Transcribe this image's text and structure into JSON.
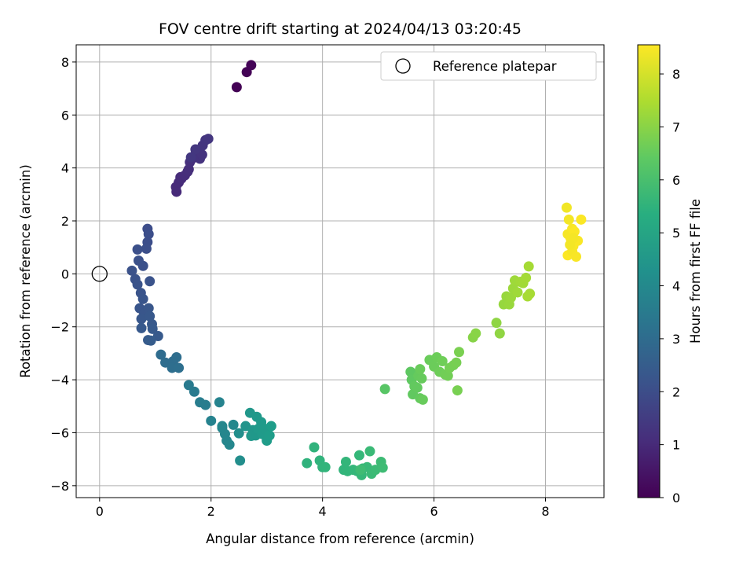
{
  "chart_data": {
    "type": "scatter",
    "title": "FOV centre drift starting at 2024/04/13 03:20:45",
    "xlabel": "Angular distance from reference (arcmin)",
    "ylabel": "Rotation from reference (arcmin)",
    "xlim": [
      -0.42,
      9.05
    ],
    "ylim": [
      -8.45,
      8.65
    ],
    "xticks": [
      "0",
      "2",
      "4",
      "6",
      "8"
    ],
    "yticks": [
      "-8",
      "-6",
      "-4",
      "-2",
      "0",
      "2",
      "4",
      "6",
      "8"
    ],
    "grid": true,
    "legend": {
      "placement": "top-right",
      "entries": [
        "Reference platepar"
      ]
    },
    "reference_point": {
      "x": 0,
      "y": 0
    },
    "colorbar": {
      "label": "Hours from first FF file",
      "min": 0,
      "max": 8.55,
      "ticks": [
        "0",
        "1",
        "2",
        "3",
        "4",
        "5",
        "6",
        "7",
        "8"
      ],
      "colormap": "viridis"
    },
    "points": [
      [
        2.46,
        7.05,
        0.02
      ],
      [
        2.64,
        7.62,
        0.05
      ],
      [
        2.72,
        7.88,
        0.08
      ],
      [
        1.38,
        3.1,
        1.0
      ],
      [
        1.37,
        3.28,
        1.02
      ],
      [
        1.42,
        3.45,
        1.04
      ],
      [
        1.47,
        3.6,
        1.06
      ],
      [
        1.45,
        3.65,
        1.08
      ],
      [
        1.53,
        3.72,
        1.1
      ],
      [
        1.58,
        3.86,
        1.12
      ],
      [
        1.6,
        3.95,
        1.14
      ],
      [
        1.62,
        4.22,
        1.16
      ],
      [
        1.66,
        4.35,
        1.18
      ],
      [
        1.7,
        4.45,
        1.2
      ],
      [
        1.73,
        4.6,
        1.22
      ],
      [
        1.77,
        4.55,
        1.24
      ],
      [
        1.8,
        4.35,
        1.26
      ],
      [
        1.84,
        4.5,
        1.28
      ],
      [
        1.85,
        4.85,
        1.3
      ],
      [
        1.9,
        5.05,
        1.32
      ],
      [
        1.95,
        5.1,
        1.34
      ],
      [
        1.72,
        4.7,
        1.36
      ],
      [
        1.64,
        4.4,
        1.38
      ],
      [
        0.86,
        1.7,
        2.0
      ],
      [
        0.88,
        1.5,
        2.02
      ],
      [
        0.86,
        1.2,
        2.04
      ],
      [
        0.84,
        0.95,
        2.06
      ],
      [
        0.68,
        0.92,
        2.08
      ],
      [
        0.78,
        0.3,
        2.1
      ],
      [
        0.7,
        0.5,
        2.12
      ],
      [
        0.58,
        0.12,
        2.14
      ],
      [
        0.64,
        -0.2,
        2.16
      ],
      [
        0.68,
        -0.4,
        2.18
      ],
      [
        0.9,
        -0.28,
        2.2
      ],
      [
        0.74,
        -0.72,
        2.22
      ],
      [
        0.78,
        -0.95,
        2.24
      ],
      [
        0.72,
        -1.3,
        2.26
      ],
      [
        0.8,
        -1.5,
        2.28
      ],
      [
        0.88,
        -1.3,
        2.3
      ],
      [
        0.75,
        -1.7,
        2.32
      ],
      [
        0.9,
        -1.6,
        2.34
      ],
      [
        0.94,
        -1.9,
        2.36
      ],
      [
        0.75,
        -2.05,
        2.38
      ],
      [
        0.95,
        -2.08,
        2.4
      ],
      [
        1.05,
        -2.35,
        2.42
      ],
      [
        0.87,
        -2.5,
        2.44
      ],
      [
        0.92,
        -2.52,
        2.46
      ],
      [
        1.1,
        -3.05,
        3.0
      ],
      [
        1.18,
        -3.35,
        3.02
      ],
      [
        1.32,
        -3.3,
        3.04
      ],
      [
        1.38,
        -3.15,
        3.06
      ],
      [
        1.3,
        -3.55,
        3.08
      ],
      [
        1.42,
        -3.55,
        3.1
      ],
      [
        1.6,
        -4.2,
        3.5
      ],
      [
        1.7,
        -4.45,
        3.52
      ],
      [
        1.8,
        -4.85,
        3.6
      ],
      [
        1.9,
        -4.95,
        3.62
      ],
      [
        2.0,
        -5.55,
        3.8
      ],
      [
        2.15,
        -4.85,
        3.82
      ],
      [
        2.2,
        -5.82,
        3.9
      ],
      [
        2.25,
        -6.05,
        3.92
      ],
      [
        2.28,
        -6.3,
        3.94
      ],
      [
        2.33,
        -6.45,
        3.96
      ],
      [
        2.2,
        -5.75,
        3.98
      ],
      [
        2.4,
        -5.7,
        4.0
      ],
      [
        2.5,
        -6.02,
        4.2
      ],
      [
        2.52,
        -7.05,
        4.22
      ],
      [
        2.62,
        -5.75,
        4.4
      ],
      [
        2.7,
        -5.25,
        4.5
      ],
      [
        2.75,
        -5.9,
        4.52
      ],
      [
        2.72,
        -6.12,
        4.54
      ],
      [
        2.8,
        -6.1,
        4.56
      ],
      [
        2.82,
        -5.4,
        4.58
      ],
      [
        2.85,
        -5.85,
        4.6
      ],
      [
        2.9,
        -5.6,
        4.62
      ],
      [
        2.92,
        -6.05,
        4.64
      ],
      [
        2.96,
        -5.85,
        4.66
      ],
      [
        3.0,
        -6.3,
        4.68
      ],
      [
        3.05,
        -6.1,
        4.7
      ],
      [
        3.08,
        -5.75,
        4.72
      ],
      [
        3.72,
        -7.15,
        5.5
      ],
      [
        3.85,
        -6.55,
        5.52
      ],
      [
        3.95,
        -7.05,
        5.54
      ],
      [
        4.0,
        -7.3,
        5.56
      ],
      [
        4.05,
        -7.3,
        5.58
      ],
      [
        4.38,
        -7.4,
        5.6
      ],
      [
        4.45,
        -7.45,
        5.62
      ],
      [
        4.42,
        -7.1,
        5.64
      ],
      [
        4.55,
        -7.4,
        5.66
      ],
      [
        4.62,
        -7.45,
        5.68
      ],
      [
        4.66,
        -6.85,
        5.7
      ],
      [
        4.7,
        -7.6,
        5.72
      ],
      [
        4.72,
        -7.35,
        5.74
      ],
      [
        4.8,
        -7.3,
        5.76
      ],
      [
        4.85,
        -6.7,
        5.78
      ],
      [
        4.88,
        -7.55,
        5.8
      ],
      [
        4.95,
        -7.4,
        5.82
      ],
      [
        5.05,
        -7.1,
        5.84
      ],
      [
        5.08,
        -7.32,
        5.86
      ],
      [
        4.68,
        -7.4,
        5.88
      ],
      [
        5.12,
        -4.35,
        6.3
      ],
      [
        5.58,
        -3.7,
        6.4
      ],
      [
        5.6,
        -4.0,
        6.42
      ],
      [
        5.62,
        -4.55,
        6.44
      ],
      [
        5.65,
        -4.25,
        6.46
      ],
      [
        5.7,
        -4.3,
        6.48
      ],
      [
        5.75,
        -4.7,
        6.5
      ],
      [
        5.72,
        -3.85,
        6.52
      ],
      [
        5.78,
        -3.95,
        6.54
      ],
      [
        5.8,
        -4.75,
        6.56
      ],
      [
        5.75,
        -3.6,
        6.58
      ],
      [
        5.92,
        -3.25,
        6.6
      ],
      [
        6.0,
        -3.5,
        6.62
      ],
      [
        6.05,
        -3.15,
        6.64
      ],
      [
        6.1,
        -3.7,
        6.66
      ],
      [
        6.15,
        -3.3,
        6.68
      ],
      [
        6.2,
        -3.8,
        6.7
      ],
      [
        6.25,
        -3.85,
        6.72
      ],
      [
        6.28,
        -3.55,
        6.74
      ],
      [
        6.35,
        -3.45,
        6.76
      ],
      [
        6.4,
        -3.35,
        6.78
      ],
      [
        6.42,
        -4.4,
        6.8
      ],
      [
        6.45,
        -2.95,
        6.82
      ],
      [
        6.7,
        -2.4,
        7.0
      ],
      [
        6.75,
        -2.25,
        7.02
      ],
      [
        7.12,
        -1.85,
        7.1
      ],
      [
        7.18,
        -2.25,
        7.12
      ],
      [
        7.25,
        -1.15,
        7.2
      ],
      [
        7.3,
        -0.85,
        7.22
      ],
      [
        7.35,
        -1.15,
        7.24
      ],
      [
        7.38,
        -0.9,
        7.26
      ],
      [
        7.42,
        -0.55,
        7.28
      ],
      [
        7.45,
        -0.25,
        7.3
      ],
      [
        7.5,
        -0.7,
        7.32
      ],
      [
        7.55,
        -0.3,
        7.34
      ],
      [
        7.6,
        -0.35,
        7.36
      ],
      [
        7.65,
        -0.15,
        7.38
      ],
      [
        7.7,
        0.28,
        7.4
      ],
      [
        7.72,
        -0.75,
        7.42
      ],
      [
        7.68,
        -0.85,
        7.44
      ],
      [
        8.38,
        2.5,
        8.4
      ],
      [
        8.42,
        2.05,
        8.42
      ],
      [
        8.4,
        1.5,
        8.44
      ],
      [
        8.45,
        1.35,
        8.46
      ],
      [
        8.48,
        1.7,
        8.48
      ],
      [
        8.5,
        1.05,
        8.5
      ],
      [
        8.52,
        1.6,
        8.52
      ],
      [
        8.4,
        0.7,
        8.54
      ],
      [
        8.48,
        0.85,
        8.46
      ],
      [
        8.55,
        0.65,
        8.48
      ],
      [
        8.58,
        1.25,
        8.5
      ],
      [
        8.64,
        2.05,
        8.52
      ],
      [
        8.5,
        1.35,
        8.44
      ],
      [
        8.44,
        1.1,
        8.42
      ]
    ]
  }
}
